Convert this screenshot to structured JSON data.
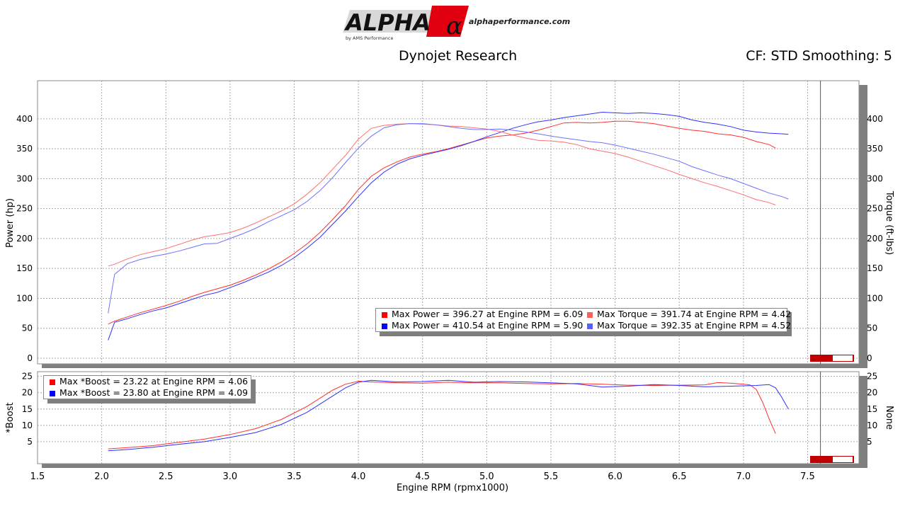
{
  "header": {
    "logo_text": "ALPHA",
    "logo_subtext": "by AMS Performance",
    "logo_url": "alphaperformance.com",
    "title": "Dynojet Research",
    "cf_text": "CF: STD Smoothing: 5"
  },
  "colors": {
    "run1_power": "#ff3030",
    "run1_torque": "#ff7070",
    "run2_power": "#3030ff",
    "run2_torque": "#7070ff",
    "grid": "#aaaaaa",
    "shadow": "#7f7f7f"
  },
  "chart_data": [
    {
      "type": "line",
      "xlabel": "",
      "ylabel": "Power (hp)",
      "ylabel_right": "Torque (ft-lbs)",
      "xlim": [
        1.5,
        7.9
      ],
      "ylim": [
        0,
        440
      ],
      "yticks": [
        0,
        50,
        100,
        150,
        200,
        250,
        300,
        350,
        400
      ],
      "vertical_marker_x": 7.6,
      "series": [
        {
          "id": "power1",
          "x": [
            2.05,
            2.1,
            2.2,
            2.3,
            2.4,
            2.5,
            2.6,
            2.7,
            2.8,
            2.9,
            3.0,
            3.1,
            3.2,
            3.3,
            3.4,
            3.5,
            3.6,
            3.7,
            3.8,
            3.9,
            4.0,
            4.1,
            4.2,
            4.3,
            4.4,
            4.5,
            4.6,
            4.7,
            4.8,
            4.9,
            5.0,
            5.1,
            5.2,
            5.3,
            5.4,
            5.5,
            5.6,
            5.7,
            5.8,
            5.9,
            6.0,
            6.1,
            6.2,
            6.3,
            6.4,
            6.5,
            6.6,
            6.7,
            6.8,
            6.9,
            7.0,
            7.1,
            7.2,
            7.25
          ],
          "values": [
            57,
            62,
            69,
            76,
            82,
            88,
            95,
            103,
            110,
            116,
            122,
            130,
            139,
            149,
            161,
            175,
            191,
            210,
            232,
            255,
            282,
            304,
            318,
            328,
            336,
            341,
            345,
            350,
            356,
            362,
            368,
            371,
            373,
            376,
            381,
            387,
            393,
            394,
            393,
            394,
            396,
            396,
            394,
            392,
            388,
            384,
            381,
            379,
            375,
            373,
            369,
            362,
            357,
            351
          ]
        },
        {
          "id": "power2",
          "x": [
            2.05,
            2.1,
            2.2,
            2.3,
            2.4,
            2.5,
            2.6,
            2.7,
            2.8,
            2.9,
            3.0,
            3.1,
            3.2,
            3.3,
            3.4,
            3.5,
            3.6,
            3.7,
            3.8,
            3.9,
            4.0,
            4.1,
            4.2,
            4.3,
            4.4,
            4.5,
            4.6,
            4.7,
            4.8,
            4.9,
            5.0,
            5.1,
            5.2,
            5.3,
            5.4,
            5.5,
            5.6,
            5.7,
            5.8,
            5.9,
            6.0,
            6.1,
            6.2,
            6.3,
            6.4,
            6.5,
            6.6,
            6.7,
            6.8,
            6.9,
            7.0,
            7.1,
            7.2,
            7.3,
            7.35
          ],
          "values": [
            30,
            60,
            66,
            73,
            79,
            84,
            91,
            98,
            105,
            110,
            118,
            126,
            135,
            144,
            155,
            168,
            184,
            202,
            224,
            246,
            270,
            293,
            311,
            324,
            333,
            339,
            344,
            349,
            355,
            362,
            370,
            377,
            384,
            390,
            395,
            398,
            402,
            405,
            408,
            411,
            410,
            409,
            410,
            409,
            407,
            404,
            398,
            394,
            391,
            387,
            381,
            378,
            376,
            375,
            374
          ]
        },
        {
          "id": "torque1",
          "x": [
            2.05,
            2.1,
            2.2,
            2.3,
            2.4,
            2.5,
            2.6,
            2.7,
            2.8,
            2.9,
            3.0,
            3.1,
            3.2,
            3.3,
            3.4,
            3.5,
            3.6,
            3.7,
            3.8,
            3.9,
            4.0,
            4.1,
            4.2,
            4.3,
            4.4,
            4.5,
            4.6,
            4.7,
            4.8,
            4.9,
            5.0,
            5.1,
            5.2,
            5.3,
            5.4,
            5.5,
            5.6,
            5.7,
            5.8,
            5.9,
            6.0,
            6.1,
            6.2,
            6.3,
            6.4,
            6.5,
            6.6,
            6.7,
            6.8,
            6.9,
            7.0,
            7.1,
            7.2,
            7.25
          ],
          "values": [
            154,
            157,
            166,
            173,
            178,
            183,
            190,
            197,
            203,
            206,
            210,
            217,
            226,
            236,
            246,
            258,
            274,
            293,
            316,
            339,
            366,
            384,
            389,
            391,
            392,
            391,
            390,
            388,
            387,
            385,
            383,
            379,
            373,
            368,
            364,
            363,
            361,
            357,
            350,
            346,
            342,
            336,
            329,
            322,
            315,
            307,
            300,
            293,
            287,
            280,
            273,
            265,
            260,
            256
          ]
        },
        {
          "id": "torque2",
          "x": [
            2.05,
            2.1,
            2.2,
            2.3,
            2.4,
            2.5,
            2.6,
            2.7,
            2.8,
            2.9,
            3.0,
            3.1,
            3.2,
            3.3,
            3.4,
            3.5,
            3.6,
            3.7,
            3.8,
            3.9,
            4.0,
            4.1,
            4.2,
            4.3,
            4.4,
            4.5,
            4.6,
            4.7,
            4.8,
            4.9,
            5.0,
            5.1,
            5.2,
            5.3,
            5.4,
            5.5,
            5.6,
            5.7,
            5.8,
            5.9,
            6.0,
            6.1,
            6.2,
            6.3,
            6.4,
            6.5,
            6.6,
            6.7,
            6.8,
            6.9,
            7.0,
            7.1,
            7.2,
            7.3,
            7.35
          ],
          "values": [
            75,
            140,
            158,
            165,
            170,
            174,
            179,
            185,
            191,
            192,
            200,
            208,
            217,
            228,
            238,
            248,
            262,
            280,
            302,
            327,
            351,
            371,
            385,
            390,
            392,
            392,
            390,
            387,
            384,
            382,
            382,
            383,
            381,
            378,
            375,
            371,
            368,
            365,
            362,
            360,
            356,
            351,
            346,
            341,
            335,
            329,
            320,
            313,
            306,
            300,
            292,
            284,
            276,
            270,
            266
          ]
        }
      ],
      "legend": [
        {
          "label": "Max Power = 396.27 at Engine RPM = 6.09",
          "color": "#ff0000"
        },
        {
          "label": "Max Torque = 391.74 at Engine RPM = 4.42",
          "color": "#ff5c5c"
        },
        {
          "label": "Max Power = 410.54 at Engine RPM = 5.90",
          "color": "#0000ff"
        },
        {
          "label": "Max Torque = 392.35 at Engine RPM = 4.52",
          "color": "#5c5cff"
        }
      ]
    },
    {
      "type": "line",
      "xlabel": "Engine RPM (rpmx1000)",
      "ylabel": "*Boost",
      "ylabel_right": "None",
      "xlim": [
        1.5,
        7.9
      ],
      "ylim": [
        0,
        26
      ],
      "yticks": [
        5,
        10,
        15,
        20,
        25
      ],
      "xticks": [
        1.5,
        2.0,
        2.5,
        3.0,
        3.5,
        4.0,
        4.5,
        5.0,
        5.5,
        6.0,
        6.5,
        7.0,
        7.5
      ],
      "vertical_marker_x": 7.6,
      "series": [
        {
          "id": "boost1",
          "x": [
            2.05,
            2.2,
            2.4,
            2.6,
            2.8,
            3.0,
            3.2,
            3.4,
            3.6,
            3.8,
            3.9,
            4.0,
            4.1,
            4.3,
            4.5,
            4.7,
            4.9,
            5.1,
            5.3,
            5.5,
            5.7,
            5.9,
            6.1,
            6.3,
            6.5,
            6.7,
            6.8,
            6.9,
            7.0,
            7.05,
            7.1,
            7.15,
            7.2,
            7.25
          ],
          "values": [
            2.8,
            3.2,
            3.8,
            4.8,
            5.8,
            7.2,
            9.0,
            11.8,
            15.8,
            20.8,
            22.6,
            23.5,
            23.3,
            23.0,
            22.9,
            23.2,
            23.0,
            23.0,
            22.8,
            22.7,
            22.8,
            22.6,
            22.3,
            22.2,
            22.3,
            22.4,
            23.1,
            22.9,
            22.6,
            22.4,
            21.0,
            17.0,
            12.0,
            7.5
          ]
        },
        {
          "id": "boost2",
          "x": [
            2.05,
            2.2,
            2.4,
            2.6,
            2.8,
            3.0,
            3.2,
            3.4,
            3.6,
            3.8,
            3.9,
            4.0,
            4.1,
            4.3,
            4.5,
            4.7,
            4.9,
            5.1,
            5.3,
            5.5,
            5.7,
            5.9,
            6.1,
            6.3,
            6.5,
            6.7,
            6.9,
            7.1,
            7.2,
            7.25,
            7.3,
            7.35
          ],
          "values": [
            2.2,
            2.6,
            3.3,
            4.2,
            5.0,
            6.3,
            7.8,
            10.3,
            14.0,
            19.0,
            21.5,
            23.2,
            23.8,
            23.3,
            23.4,
            23.8,
            23.2,
            23.4,
            23.3,
            23.0,
            22.7,
            21.7,
            22.0,
            22.5,
            22.2,
            21.8,
            22.0,
            22.2,
            22.5,
            21.5,
            18.5,
            15.0
          ]
        }
      ],
      "legend": [
        {
          "label": "Max *Boost = 23.22 at Engine RPM = 4.06",
          "color": "#ff0000"
        },
        {
          "label": "Max *Boost = 23.80 at Engine RPM = 4.09",
          "color": "#0000ff"
        }
      ]
    }
  ]
}
